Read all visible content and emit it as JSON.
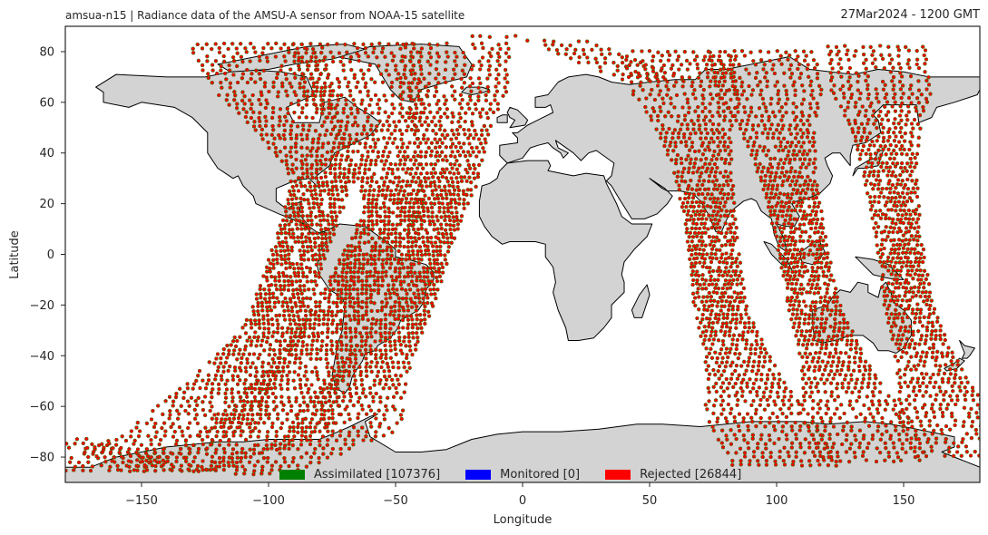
{
  "header": {
    "title": "amsua-n15  |  Radiance data of the AMSU-A sensor from NOAA-15 satellite",
    "datetime": "27Mar2024 - 1200 GMT"
  },
  "legend": [
    {
      "label": "Assimilated [107376]",
      "color": "#008000"
    },
    {
      "label": "Monitored [0]",
      "color": "#0000ff"
    },
    {
      "label": "Rejected [26844]",
      "color": "#ff0000"
    }
  ],
  "colors": {
    "land": "#d3d3d3",
    "ocean": "#ffffff",
    "coast": "#000000",
    "marker_fill": "#ff0000",
    "marker_edge": "#008000"
  },
  "chart_data": {
    "type": "scatter",
    "projection": "PlateCarree",
    "title": "amsua-n15  |  Radiance data of the AMSU-A sensor from NOAA-15 satellite",
    "xlabel": "Longitude",
    "ylabel": "Latitude",
    "xlim": [
      -180,
      180
    ],
    "ylim": [
      -90,
      90
    ],
    "xticks": [
      -150,
      -100,
      -50,
      0,
      50,
      100,
      150
    ],
    "yticks": [
      -80,
      -60,
      -40,
      -20,
      0,
      20,
      40,
      60,
      80
    ],
    "grid": false,
    "legend_position": "bottom-center",
    "swaths": [
      {
        "name": "swath-1",
        "center": [
          [
            -107,
            83
          ],
          [
            -78,
            30
          ],
          [
            -98,
            -30
          ],
          [
            -130,
            -70
          ],
          [
            -172,
            -86
          ]
        ],
        "half_width_deg": 11
      },
      {
        "name": "swath-2",
        "center": [
          [
            -66,
            83
          ],
          [
            -50,
            20
          ],
          [
            -75,
            -30
          ],
          [
            -100,
            -70
          ],
          [
            -140,
            -86
          ]
        ],
        "half_width_deg": 11
      },
      {
        "name": "swath-3",
        "center": [
          [
            -25,
            83
          ],
          [
            -28,
            30
          ],
          [
            -45,
            -20
          ],
          [
            -70,
            -70
          ],
          [
            -110,
            -86
          ]
        ],
        "half_width_deg": 10
      },
      {
        "name": "swath-4",
        "center": [
          [
            -10,
            86
          ],
          [
            10,
            86
          ],
          [
            30,
            78
          ],
          [
            45,
            72
          ],
          [
            55,
            68
          ]
        ],
        "half_width_deg": 6
      },
      {
        "name": "swath-5",
        "center": [
          [
            62,
            80
          ],
          [
            72,
            30
          ],
          [
            78,
            -20
          ],
          [
            92,
            -60
          ],
          [
            105,
            -84
          ]
        ],
        "half_width_deg": 10
      },
      {
        "name": "swath-6",
        "center": [
          [
            95,
            80
          ],
          [
            105,
            30
          ],
          [
            115,
            -20
          ],
          [
            128,
            -55
          ],
          [
            140,
            -82
          ]
        ],
        "half_width_deg": 10
      },
      {
        "name": "swath-7",
        "center": [
          [
            140,
            82
          ],
          [
            145,
            30
          ],
          [
            152,
            -20
          ],
          [
            162,
            -50
          ],
          [
            175,
            -80
          ]
        ],
        "half_width_deg": 9
      },
      {
        "name": "swath-8",
        "center": [
          [
            -178,
            -73
          ],
          [
            -150,
            -82
          ],
          [
            -120,
            -86
          ],
          [
            -90,
            -87
          ]
        ],
        "half_width_deg": 5
      }
    ]
  }
}
